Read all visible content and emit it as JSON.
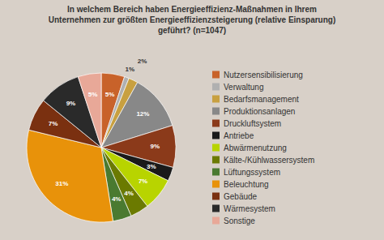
{
  "chart_data": {
    "type": "pie",
    "title": "In welchem Bereich haben Energieeffizienz-Maßnahmen in Ihrem\nUnternehmen zur größten Energieeffizienzsteigerung (relative Einsparung)\ngeführt? (n=1047)",
    "labels": [
      "Nutzersensibilisierung",
      "Verwaltung",
      "Bedarfsmanagement",
      "Produktionsanlagen",
      "Druckluftsystem",
      "Antriebe",
      "Abwärmenutzung",
      "Kälte-/Kühlwassersystem",
      "Lüftungssystem",
      "Beleuchtung",
      "Gebäude",
      "Wärmesystem",
      "Sonstige"
    ],
    "values": [
      5,
      1,
      2,
      12,
      9,
      3,
      7,
      4,
      4,
      31,
      7,
      9,
      5
    ],
    "value_labels": [
      "5%",
      "1%",
      "2%",
      "12%",
      "9%",
      "3%",
      "7%",
      "4%",
      "4%",
      "31%",
      "7%",
      "9%",
      "5%"
    ],
    "colors": [
      "#c8622a",
      "#b0b0b0",
      "#c8a040",
      "#888888",
      "#8b3a1a",
      "#1a1a1a",
      "#b8d400",
      "#6b7a00",
      "#4a7a30",
      "#e8920a",
      "#7a3010",
      "#2a2a2a",
      "#e8a898"
    ],
    "data_labels": true,
    "legend": "right"
  }
}
